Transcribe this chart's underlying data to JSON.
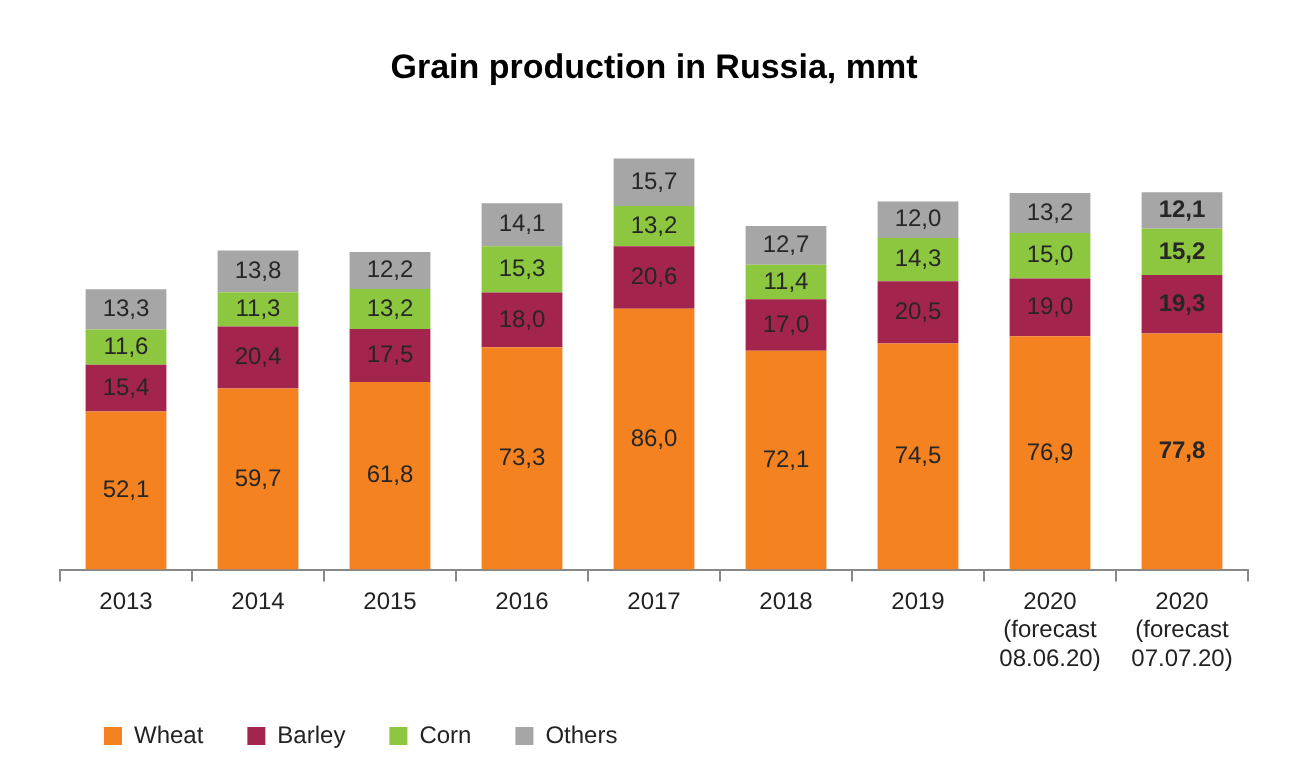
{
  "chart_data": {
    "type": "bar",
    "title": "Grain production in Russia, mmt",
    "stacked": true,
    "legend": "bottom left",
    "categories": [
      "2013",
      "2014",
      "2015",
      "2016",
      "2017",
      "2018",
      "2019",
      "2020 (forecast 08.06.20)",
      "2020 (forecast 07.07.20)"
    ],
    "series": [
      {
        "name": "Wheat",
        "color": "#f58220",
        "values": [
          52.1,
          59.7,
          61.8,
          73.3,
          86.0,
          72.1,
          74.5,
          76.9,
          77.8
        ],
        "value_labels": [
          "52,1",
          "59,7",
          "61,8",
          "73,3",
          "86,0",
          "72,1",
          "74,5",
          "76,9",
          "77,8"
        ]
      },
      {
        "name": "Barley",
        "color": "#a3254e",
        "values": [
          15.4,
          20.4,
          17.5,
          18.0,
          20.6,
          17.0,
          20.5,
          19.0,
          19.3
        ],
        "value_labels": [
          "15,4",
          "20,4",
          "17,5",
          "18,0",
          "20,6",
          "17,0",
          "20,5",
          "19,0",
          "19,3"
        ]
      },
      {
        "name": "Corn",
        "color": "#8dc63f",
        "values": [
          11.6,
          11.3,
          13.2,
          15.3,
          13.2,
          11.4,
          14.3,
          15.0,
          15.2
        ],
        "value_labels": [
          "11,6",
          "11,3",
          "13,2",
          "15,3",
          "13,2",
          "11,4",
          "14,3",
          "15,0",
          "15,2"
        ]
      },
      {
        "name": "Others",
        "color": "#a6a6a6",
        "values": [
          13.3,
          13.8,
          12.2,
          14.1,
          15.7,
          12.7,
          12.0,
          13.2,
          12.1
        ],
        "value_labels": [
          "13,3",
          "13,8",
          "12,2",
          "14,1",
          "15,7",
          "12,7",
          "12,0",
          "13,2",
          "12,1"
        ]
      }
    ]
  }
}
